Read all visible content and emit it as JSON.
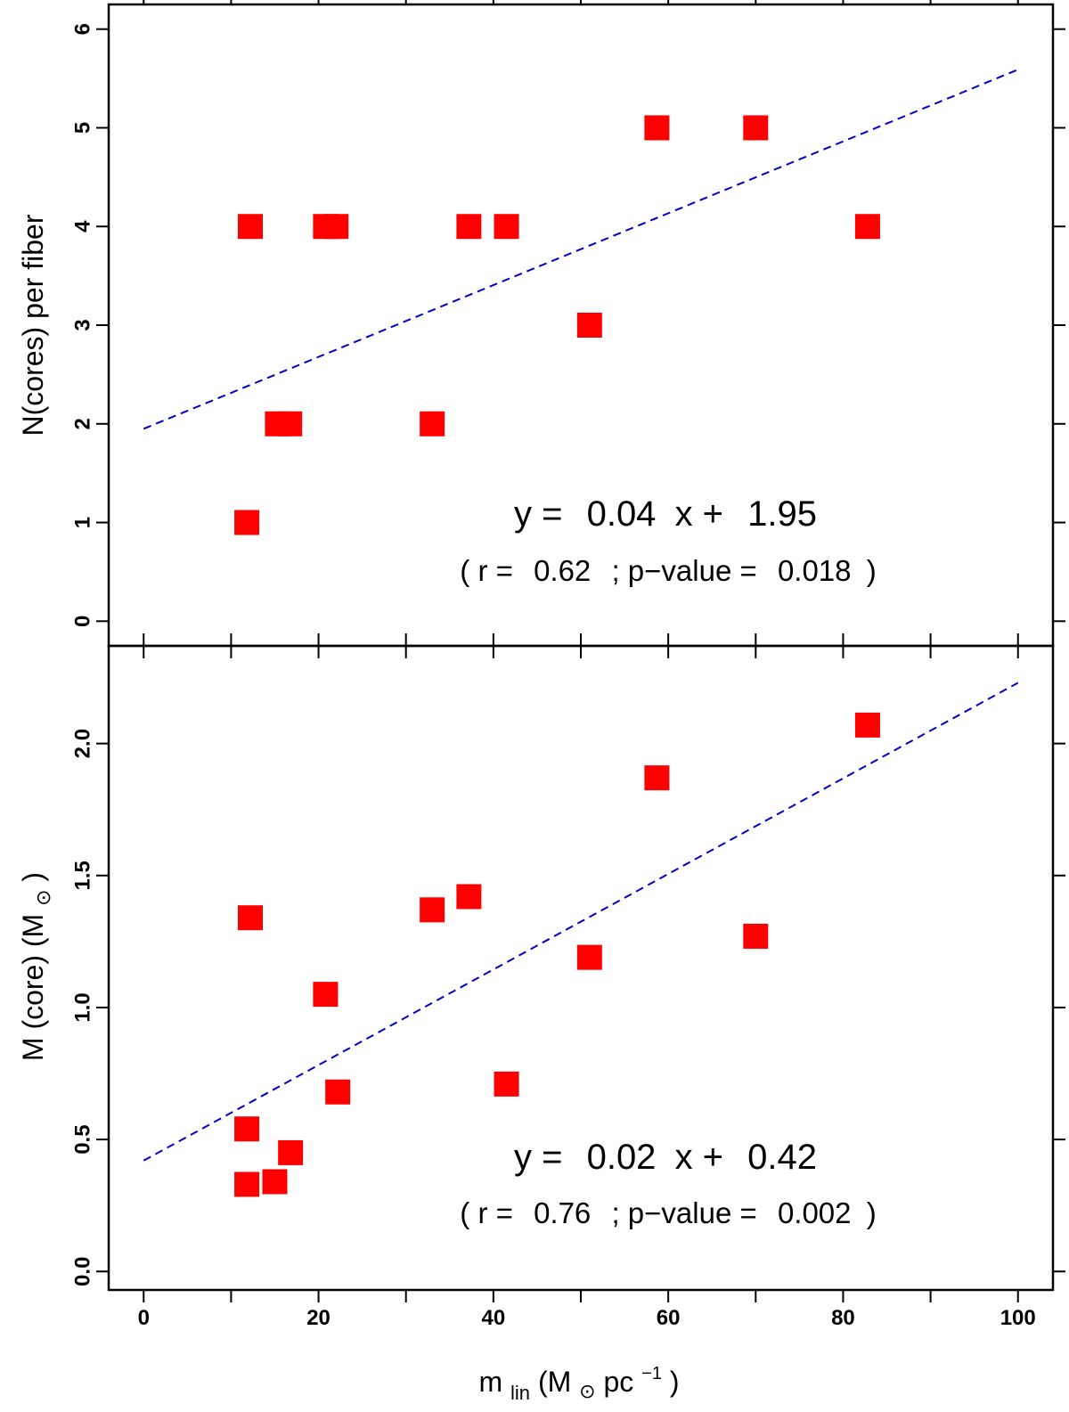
{
  "chart_data": [
    {
      "type": "scatter",
      "panel": "top",
      "xlabel": "mlin (M⊙ pc−1)",
      "ylabel": "N(cores) per fiber",
      "xlim": [
        -4,
        104
      ],
      "ylim": [
        -0.25,
        6.25
      ],
      "xticks": [
        0,
        20,
        40,
        60,
        80,
        100
      ],
      "yticks": [
        0,
        1,
        2,
        3,
        4,
        5,
        6
      ],
      "ytick_labels": [
        "0",
        "1",
        "2",
        "3",
        "4",
        "5",
        "6"
      ],
      "x": [
        12.2,
        11.8,
        15.3,
        16.7,
        20.8,
        22.0,
        33.0,
        37.2,
        41.5,
        51.0,
        58.7,
        70.0,
        82.8
      ],
      "y": [
        4,
        1,
        2,
        2,
        4,
        4,
        2,
        4,
        4,
        3,
        5,
        5,
        4
      ],
      "fit": {
        "slope": 0.0364,
        "intercept": 1.95,
        "x_range": [
          0,
          100
        ]
      },
      "equation_parts": {
        "y_eq": "y =",
        "slope": "0.04",
        "x_plus": "x +",
        "intercept": "1.95"
      },
      "stats_parts": {
        "open": "( r =",
        "r": "0.62",
        "sep": "; p−value =",
        "p": "0.018",
        "close": ")"
      }
    },
    {
      "type": "scatter",
      "panel": "bottom",
      "xlabel": "mlin (M⊙ pc−1)",
      "ylabel": "M (core) (M⊙)",
      "xlim": [
        -4,
        104
      ],
      "ylim": [
        -0.07,
        2.37
      ],
      "xticks": [
        0,
        20,
        40,
        60,
        80,
        100
      ],
      "yticks": [
        0.0,
        0.5,
        1.0,
        1.5,
        2.0
      ],
      "ytick_labels": [
        "0.0",
        "0.5",
        "1.0",
        "1.5",
        "2.0"
      ],
      "x": [
        12.2,
        11.8,
        11.8,
        15.0,
        16.8,
        20.8,
        22.2,
        33.0,
        37.2,
        41.5,
        51.0,
        58.7,
        70.0,
        82.8
      ],
      "y": [
        1.34,
        0.54,
        0.33,
        0.34,
        0.45,
        1.05,
        0.68,
        1.37,
        1.42,
        0.71,
        1.19,
        1.87,
        1.27,
        2.07
      ],
      "fit": {
        "slope": 0.0181,
        "intercept": 0.42,
        "x_range": [
          0,
          100
        ]
      },
      "equation_parts": {
        "y_eq": "y =",
        "slope": "0.02",
        "x_plus": "x +",
        "intercept": "0.42"
      },
      "stats_parts": {
        "open": "( r =",
        "r": "0.76",
        "sep": "; p−value =",
        "p": "0.002",
        "close": ")"
      }
    }
  ],
  "axis_text": {
    "xtick_labels": [
      "0",
      "20",
      "40",
      "60",
      "80",
      "100"
    ],
    "x_title": {
      "m": "m",
      "lin_sub": "lin",
      "open_paren_M": " (M",
      "sun_symbol": "⊙",
      "pc": " pc",
      "exponent": "−1",
      "close": ")"
    },
    "top_y_title": "N(cores) per fiber",
    "bottom_y_title": {
      "m_core": "M (core) (M",
      "sun_symbol": "⊙",
      "close": ")"
    }
  },
  "colors": {
    "points": "#ff0000",
    "fit_line": "#0000cc",
    "axes": "#000000"
  }
}
